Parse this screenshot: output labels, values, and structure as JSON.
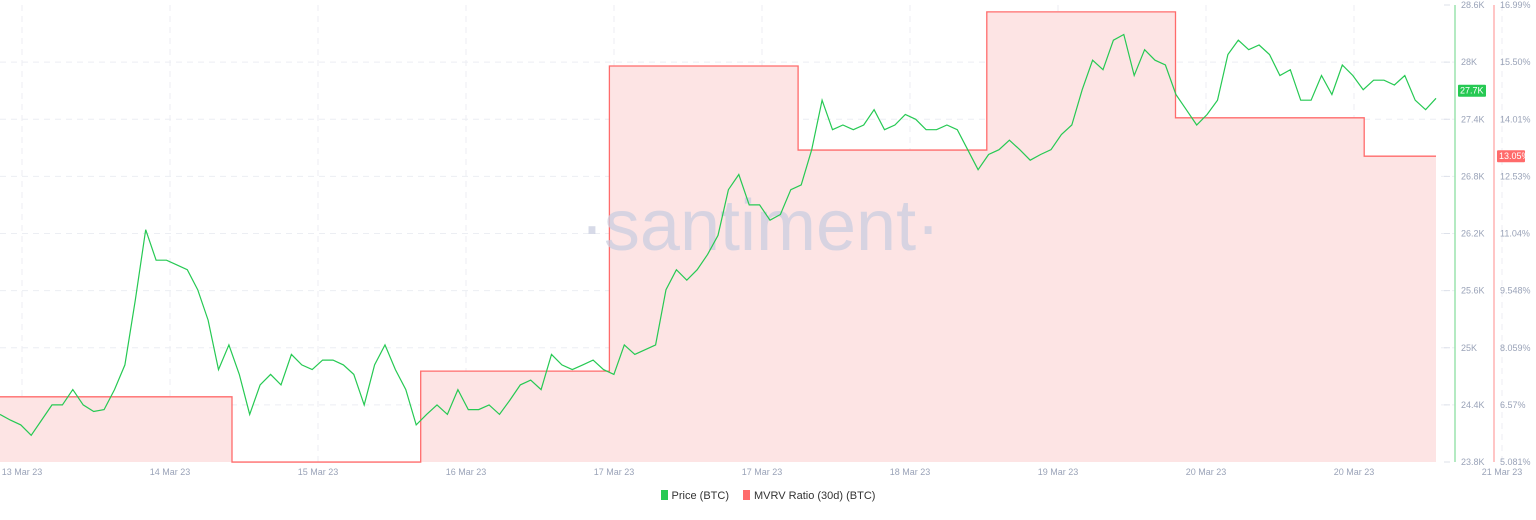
{
  "watermark": "·santiment·",
  "chart_data": {
    "type": "line",
    "x_ticks": [
      "13 Mar 23",
      "14 Mar 23",
      "15 Mar 23",
      "16 Mar 23",
      "17 Mar 23",
      "17 Mar 23",
      "18 Mar 23",
      "19 Mar 23",
      "20 Mar 23",
      "20 Mar 23",
      "21 Mar 23"
    ],
    "y_left": {
      "ticks": [
        "28.6K",
        "28K",
        "27.4K",
        "26.8K",
        "26.2K",
        "25.6K",
        "25K",
        "24.4K",
        "23.8K"
      ],
      "range": [
        23.8,
        28.6
      ],
      "unit": "K USD"
    },
    "y_right": {
      "ticks": [
        "16.99%",
        "15.50%",
        "14.01%",
        "12.53%",
        "11.04%",
        "9.548%",
        "8.059%",
        "6.57%",
        "5.081%"
      ],
      "range": [
        5.081,
        16.99
      ]
    },
    "grid": true,
    "legend_position": "bottom",
    "series": [
      {
        "name": "Price (BTC)",
        "color": "#26c953",
        "current_label": "27.7K",
        "type": "line",
        "values": [
          24.3,
          24.24,
          24.19,
          24.08,
          24.24,
          24.4,
          24.4,
          24.56,
          24.4,
          24.33,
          24.35,
          24.56,
          24.82,
          25.5,
          26.24,
          25.92,
          25.92,
          25.87,
          25.82,
          25.61,
          25.29,
          24.77,
          25.03,
          24.72,
          24.3,
          24.61,
          24.72,
          24.61,
          24.93,
          24.82,
          24.77,
          24.87,
          24.87,
          24.82,
          24.72,
          24.4,
          24.82,
          25.03,
          24.77,
          24.56,
          24.19,
          24.3,
          24.4,
          24.3,
          24.56,
          24.35,
          24.35,
          24.4,
          24.3,
          24.45,
          24.61,
          24.66,
          24.56,
          24.93,
          24.82,
          24.77,
          24.82,
          24.87,
          24.77,
          24.72,
          25.03,
          24.93,
          24.98,
          25.03,
          25.61,
          25.82,
          25.71,
          25.82,
          25.98,
          26.18,
          26.66,
          26.82,
          26.5,
          26.5,
          26.34,
          26.4,
          26.66,
          26.71,
          27.08,
          27.6,
          27.29,
          27.34,
          27.29,
          27.34,
          27.5,
          27.29,
          27.34,
          27.45,
          27.4,
          27.29,
          27.29,
          27.34,
          27.29,
          27.08,
          26.87,
          27.03,
          27.08,
          27.18,
          27.08,
          26.97,
          27.03,
          27.08,
          27.24,
          27.34,
          27.71,
          28.02,
          27.92,
          28.23,
          28.29,
          27.86,
          28.13,
          28.02,
          27.97,
          27.66,
          27.5,
          27.34,
          27.45,
          27.6,
          28.08,
          28.23,
          28.13,
          28.18,
          28.08,
          27.86,
          27.92,
          27.6,
          27.6,
          27.86,
          27.66,
          27.97,
          27.86,
          27.71,
          27.81,
          27.81,
          27.76,
          27.86,
          27.6,
          27.5,
          27.62
        ]
      },
      {
        "name": "MVRV Ratio (30d) (BTC)",
        "color": "#ff6b6b",
        "current_label": "13.05%",
        "type": "step-area",
        "values": [
          6.78,
          5.08,
          7.45,
          15.4,
          13.21,
          16.81,
          14.05,
          13.05
        ]
      }
    ]
  }
}
